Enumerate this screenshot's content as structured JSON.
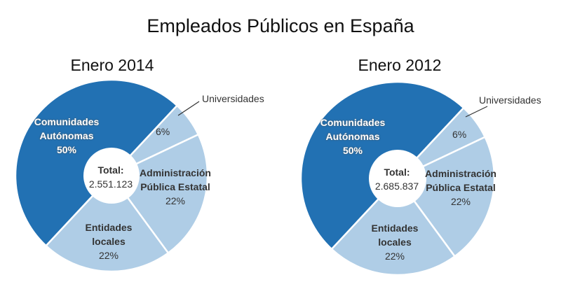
{
  "title": "Empleados Públicos en España",
  "colors": {
    "primary": "#2271b3",
    "secondary": "#afcde6"
  },
  "chart_data": [
    {
      "type": "pie",
      "title": "Enero 2014",
      "center_label": "Total:",
      "center_value": "2.551.123",
      "slices": [
        {
          "name": "Universidades",
          "value": 6,
          "label": "6%",
          "color": "#afcde6"
        },
        {
          "name": "Administración Pública Estatal",
          "value": 22,
          "label": "22%",
          "color": "#afcde6"
        },
        {
          "name": "Entidades locales",
          "value": 22,
          "label": "22%",
          "color": "#afcde6"
        },
        {
          "name": "Comunidades Autónomas",
          "value": 50,
          "label": "50%",
          "color": "#2271b3"
        }
      ]
    },
    {
      "type": "pie",
      "title": "Enero 2012",
      "center_label": "Total:",
      "center_value": "2.685.837",
      "slices": [
        {
          "name": "Universidades",
          "value": 6,
          "label": "6%",
          "color": "#afcde6"
        },
        {
          "name": "Administración Pública Estatal",
          "value": 22,
          "label": "22%",
          "color": "#afcde6"
        },
        {
          "name": "Entidades locales",
          "value": 22,
          "label": "22%",
          "color": "#afcde6"
        },
        {
          "name": "Comunidades Autónomas",
          "value": 50,
          "label": "50%",
          "color": "#2271b3"
        }
      ]
    }
  ]
}
